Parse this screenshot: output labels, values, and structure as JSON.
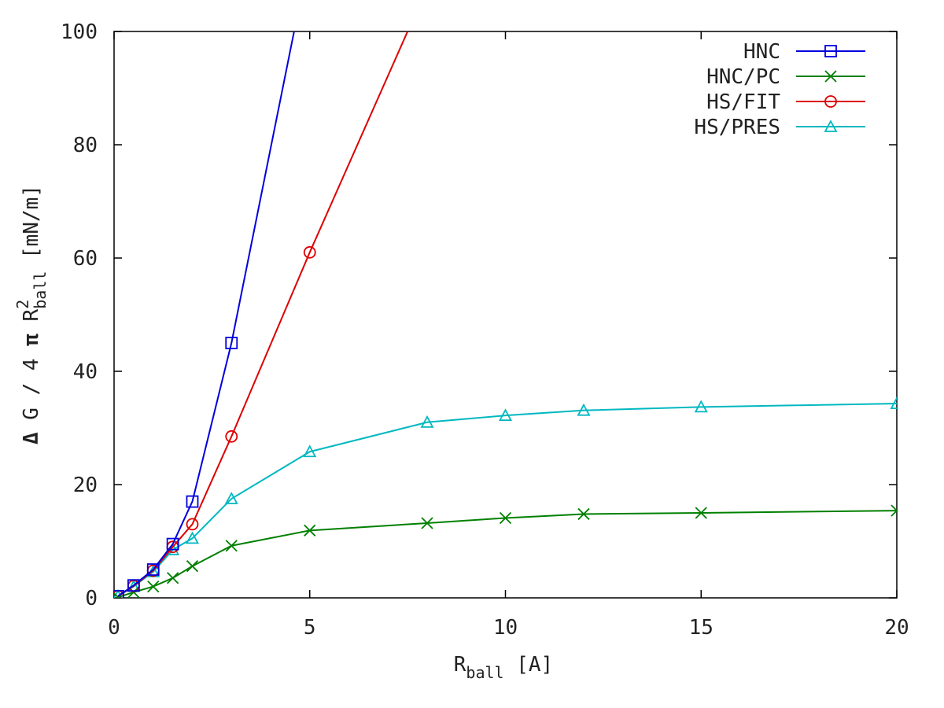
{
  "chart_data": {
    "type": "line",
    "xlabel": {
      "main": "R",
      "sub": "ball",
      "rest": " [A]"
    },
    "ylabel": {
      "delta": "Δ",
      "part1": " G / 4 ",
      "pi": "π",
      "part2": " R",
      "sup": "2",
      "sub": "ball",
      "part3": "  [mN/m]"
    },
    "xlim": [
      0,
      20
    ],
    "ylim": [
      0,
      100
    ],
    "xticks": [
      0,
      5,
      10,
      15,
      20
    ],
    "yticks": [
      0,
      20,
      40,
      60,
      80,
      100
    ],
    "grid": false,
    "legend_position": "top-right",
    "series": [
      {
        "name": "HNC",
        "color": "#0000dd",
        "marker": "square",
        "x": [
          0.1,
          0.5,
          1,
          1.5,
          2,
          3,
          4.6
        ],
        "y": [
          0.3,
          2.2,
          5.0,
          9.5,
          17.0,
          45.0,
          100.0
        ],
        "markers": [
          true,
          true,
          true,
          true,
          true,
          true,
          false
        ]
      },
      {
        "name": "HNC/PC",
        "color": "#008000",
        "marker": "cross",
        "x": [
          0.1,
          0.5,
          1,
          1.5,
          2,
          3,
          5,
          8,
          10,
          12,
          15,
          20
        ],
        "y": [
          0.1,
          1.0,
          2.0,
          3.5,
          5.6,
          9.2,
          11.9,
          13.2,
          14.1,
          14.8,
          15.0,
          15.4
        ],
        "markers": [
          true,
          true,
          true,
          true,
          true,
          true,
          true,
          true,
          true,
          true,
          true,
          true
        ]
      },
      {
        "name": "HS/FIT",
        "color": "#dd0000",
        "marker": "circle",
        "x": [
          0.1,
          0.5,
          1,
          1.5,
          2,
          3,
          5,
          7.5
        ],
        "y": [
          0.3,
          2.1,
          4.8,
          9.0,
          13.0,
          28.5,
          61.0,
          100.0
        ],
        "markers": [
          true,
          true,
          true,
          true,
          true,
          true,
          true,
          false
        ]
      },
      {
        "name": "HS/PRES",
        "color": "#00b8c0",
        "marker": "triangle",
        "x": [
          0.1,
          0.5,
          1,
          1.5,
          2,
          3,
          5,
          8,
          10,
          12,
          15,
          20
        ],
        "y": [
          0.3,
          2.0,
          4.6,
          8.5,
          10.5,
          17.5,
          25.8,
          31.0,
          32.2,
          33.1,
          33.7,
          34.3
        ],
        "markers": [
          true,
          true,
          true,
          true,
          true,
          true,
          true,
          true,
          true,
          true,
          true,
          true
        ]
      }
    ]
  }
}
